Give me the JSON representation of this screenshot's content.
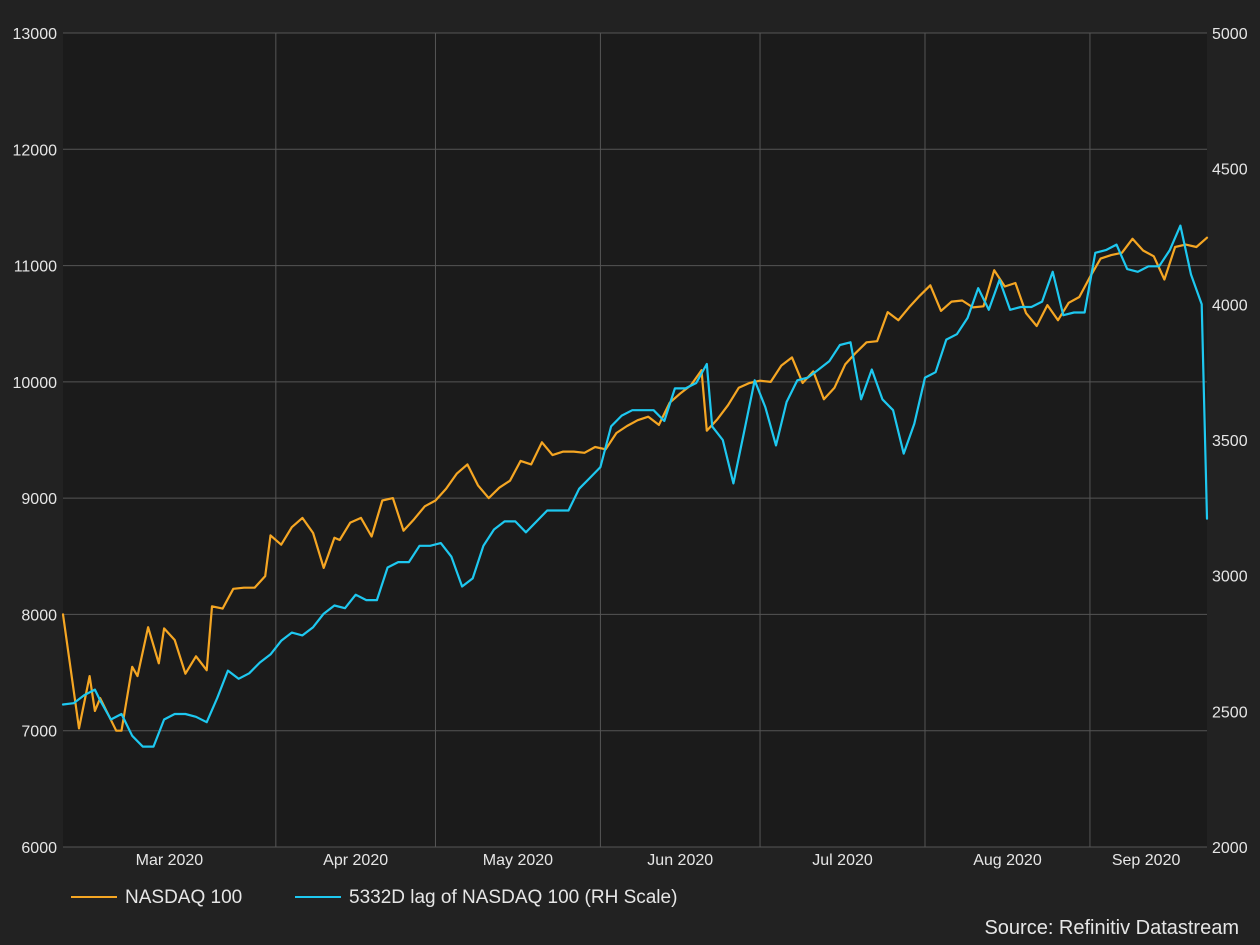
{
  "chart_data": {
    "type": "line",
    "title": "",
    "source": "Source: Refinitiv Datastream",
    "x_axis": {
      "start": "2020-02-21",
      "end": "2020-09-23",
      "month_labels": [
        {
          "label": "Mar 2020",
          "date": "2020-03-01"
        },
        {
          "label": "Apr 2020",
          "date": "2020-04-01"
        },
        {
          "label": "May 2020",
          "date": "2020-05-01"
        },
        {
          "label": "Jun 2020",
          "date": "2020-06-01"
        },
        {
          "label": "Jul 2020",
          "date": "2020-07-01"
        },
        {
          "label": "Aug 2020",
          "date": "2020-08-01"
        },
        {
          "label": "Sep 2020",
          "date": "2020-09-01"
        }
      ]
    },
    "y_left": {
      "min": 6000,
      "max": 13000,
      "ticks": [
        "13000",
        "12000",
        "11000",
        "10000",
        "9000",
        "8000",
        "7000",
        "6000"
      ]
    },
    "y_right": {
      "min": 2000,
      "max": 5000,
      "ticks": [
        "5000",
        "4500",
        "4000",
        "3500",
        "3000",
        "2500",
        "2000"
      ]
    },
    "grid": true,
    "legend_position": "bottom-left",
    "series": [
      {
        "name": "NASDAQ 100",
        "color": "#f5a623",
        "axis": "left",
        "points": [
          [
            "2020-02-21",
            8000
          ],
          [
            "2020-02-24",
            7020
          ],
          [
            "2020-02-26",
            7470
          ],
          [
            "2020-02-27",
            7170
          ],
          [
            "2020-02-28",
            7280
          ],
          [
            "2020-03-02",
            7000
          ],
          [
            "2020-03-03",
            7000
          ],
          [
            "2020-03-05",
            7550
          ],
          [
            "2020-03-06",
            7470
          ],
          [
            "2020-03-08",
            7890
          ],
          [
            "2020-03-10",
            7580
          ],
          [
            "2020-03-11",
            7880
          ],
          [
            "2020-03-13",
            7780
          ],
          [
            "2020-03-15",
            7490
          ],
          [
            "2020-03-17",
            7640
          ],
          [
            "2020-03-19",
            7520
          ],
          [
            "2020-03-20",
            8070
          ],
          [
            "2020-03-22",
            8050
          ],
          [
            "2020-03-24",
            8220
          ],
          [
            "2020-03-26",
            8230
          ],
          [
            "2020-03-28",
            8230
          ],
          [
            "2020-03-30",
            8330
          ],
          [
            "2020-03-31",
            8680
          ],
          [
            "2020-04-02",
            8600
          ],
          [
            "2020-04-04",
            8750
          ],
          [
            "2020-04-06",
            8830
          ],
          [
            "2020-04-08",
            8700
          ],
          [
            "2020-04-10",
            8400
          ],
          [
            "2020-04-12",
            8660
          ],
          [
            "2020-04-13",
            8640
          ],
          [
            "2020-04-15",
            8790
          ],
          [
            "2020-04-17",
            8830
          ],
          [
            "2020-04-19",
            8670
          ],
          [
            "2020-04-21",
            8980
          ],
          [
            "2020-04-23",
            9000
          ],
          [
            "2020-04-25",
            8720
          ],
          [
            "2020-04-27",
            8820
          ],
          [
            "2020-04-29",
            8930
          ],
          [
            "2020-05-01",
            8980
          ],
          [
            "2020-05-03",
            9080
          ],
          [
            "2020-05-05",
            9210
          ],
          [
            "2020-05-07",
            9290
          ],
          [
            "2020-05-09",
            9110
          ],
          [
            "2020-05-11",
            9000
          ],
          [
            "2020-05-13",
            9090
          ],
          [
            "2020-05-15",
            9150
          ],
          [
            "2020-05-17",
            9320
          ],
          [
            "2020-05-19",
            9290
          ],
          [
            "2020-05-21",
            9480
          ],
          [
            "2020-05-23",
            9370
          ],
          [
            "2020-05-25",
            9400
          ],
          [
            "2020-05-27",
            9400
          ],
          [
            "2020-05-29",
            9390
          ],
          [
            "2020-05-31",
            9440
          ],
          [
            "2020-06-02",
            9420
          ],
          [
            "2020-06-04",
            9560
          ],
          [
            "2020-06-06",
            9620
          ],
          [
            "2020-06-08",
            9670
          ],
          [
            "2020-06-10",
            9700
          ],
          [
            "2020-06-12",
            9630
          ],
          [
            "2020-06-14",
            9820
          ],
          [
            "2020-06-16",
            9900
          ],
          [
            "2020-06-18",
            9970
          ],
          [
            "2020-06-20",
            10100
          ],
          [
            "2020-06-21",
            9580
          ],
          [
            "2020-06-23",
            9680
          ],
          [
            "2020-06-25",
            9800
          ],
          [
            "2020-06-27",
            9950
          ],
          [
            "2020-06-29",
            9990
          ],
          [
            "2020-07-01",
            10010
          ],
          [
            "2020-07-03",
            10000
          ],
          [
            "2020-07-05",
            10140
          ],
          [
            "2020-07-07",
            10210
          ],
          [
            "2020-07-09",
            9990
          ],
          [
            "2020-07-11",
            10090
          ],
          [
            "2020-07-13",
            9850
          ],
          [
            "2020-07-15",
            9950
          ],
          [
            "2020-07-17",
            10150
          ],
          [
            "2020-07-19",
            10250
          ],
          [
            "2020-07-21",
            10340
          ],
          [
            "2020-07-23",
            10350
          ],
          [
            "2020-07-25",
            10600
          ],
          [
            "2020-07-27",
            10530
          ],
          [
            "2020-07-29",
            10640
          ],
          [
            "2020-07-31",
            10740
          ],
          [
            "2020-08-02",
            10830
          ],
          [
            "2020-08-04",
            10610
          ],
          [
            "2020-08-06",
            10690
          ],
          [
            "2020-08-08",
            10700
          ],
          [
            "2020-08-10",
            10640
          ],
          [
            "2020-08-12",
            10650
          ],
          [
            "2020-08-14",
            10960
          ],
          [
            "2020-08-16",
            10820
          ],
          [
            "2020-08-18",
            10850
          ],
          [
            "2020-08-20",
            10590
          ],
          [
            "2020-08-22",
            10480
          ],
          [
            "2020-08-24",
            10660
          ],
          [
            "2020-08-26",
            10530
          ],
          [
            "2020-08-28",
            10680
          ],
          [
            "2020-08-30",
            10730
          ],
          [
            "2020-09-01",
            10900
          ],
          [
            "2020-09-03",
            11060
          ],
          [
            "2020-09-05",
            11090
          ],
          [
            "2020-09-07",
            11110
          ],
          [
            "2020-09-09",
            11230
          ],
          [
            "2020-09-11",
            11130
          ],
          [
            "2020-09-13",
            11080
          ],
          [
            "2020-09-15",
            10880
          ],
          [
            "2020-09-17",
            11160
          ],
          [
            "2020-09-19",
            11180
          ],
          [
            "2020-09-21",
            11160
          ],
          [
            "2020-09-23",
            11240
          ]
        ]
      },
      {
        "name": "5332D lag of NASDAQ 100 (RH Scale)",
        "color": "#1ec8f0",
        "axis": "right",
        "points": [
          [
            "2020-02-21",
            2525
          ],
          [
            "2020-02-23",
            2530
          ],
          [
            "2020-02-25",
            2560
          ],
          [
            "2020-02-27",
            2580
          ],
          [
            "2020-02-28",
            2540
          ],
          [
            "2020-03-01",
            2470
          ],
          [
            "2020-03-03",
            2490
          ],
          [
            "2020-03-05",
            2410
          ],
          [
            "2020-03-07",
            2370
          ],
          [
            "2020-03-09",
            2370
          ],
          [
            "2020-03-11",
            2470
          ],
          [
            "2020-03-13",
            2490
          ],
          [
            "2020-03-15",
            2490
          ],
          [
            "2020-03-17",
            2480
          ],
          [
            "2020-03-19",
            2460
          ],
          [
            "2020-03-21",
            2550
          ],
          [
            "2020-03-23",
            2650
          ],
          [
            "2020-03-25",
            2620
          ],
          [
            "2020-03-27",
            2640
          ],
          [
            "2020-03-29",
            2680
          ],
          [
            "2020-03-31",
            2710
          ],
          [
            "2020-04-02",
            2760
          ],
          [
            "2020-04-04",
            2790
          ],
          [
            "2020-04-06",
            2780
          ],
          [
            "2020-04-08",
            2810
          ],
          [
            "2020-04-10",
            2860
          ],
          [
            "2020-04-12",
            2890
          ],
          [
            "2020-04-14",
            2880
          ],
          [
            "2020-04-16",
            2930
          ],
          [
            "2020-04-18",
            2910
          ],
          [
            "2020-04-20",
            2910
          ],
          [
            "2020-04-22",
            3030
          ],
          [
            "2020-04-24",
            3050
          ],
          [
            "2020-04-26",
            3050
          ],
          [
            "2020-04-28",
            3110
          ],
          [
            "2020-04-30",
            3110
          ],
          [
            "2020-05-02",
            3120
          ],
          [
            "2020-05-04",
            3070
          ],
          [
            "2020-05-06",
            2960
          ],
          [
            "2020-05-08",
            2990
          ],
          [
            "2020-05-10",
            3110
          ],
          [
            "2020-05-12",
            3170
          ],
          [
            "2020-05-14",
            3200
          ],
          [
            "2020-05-16",
            3200
          ],
          [
            "2020-05-18",
            3160
          ],
          [
            "2020-05-20",
            3200
          ],
          [
            "2020-05-22",
            3240
          ],
          [
            "2020-05-24",
            3240
          ],
          [
            "2020-05-26",
            3240
          ],
          [
            "2020-05-28",
            3320
          ],
          [
            "2020-05-30",
            3360
          ],
          [
            "2020-06-01",
            3400
          ],
          [
            "2020-06-03",
            3550
          ],
          [
            "2020-06-05",
            3590
          ],
          [
            "2020-06-07",
            3610
          ],
          [
            "2020-06-09",
            3610
          ],
          [
            "2020-06-11",
            3610
          ],
          [
            "2020-06-13",
            3570
          ],
          [
            "2020-06-15",
            3690
          ],
          [
            "2020-06-17",
            3690
          ],
          [
            "2020-06-19",
            3710
          ],
          [
            "2020-06-21",
            3780
          ],
          [
            "2020-06-22",
            3550
          ],
          [
            "2020-06-24",
            3500
          ],
          [
            "2020-06-26",
            3340
          ],
          [
            "2020-06-28",
            3530
          ],
          [
            "2020-06-30",
            3720
          ],
          [
            "2020-07-02",
            3620
          ],
          [
            "2020-07-04",
            3480
          ],
          [
            "2020-07-06",
            3640
          ],
          [
            "2020-07-08",
            3720
          ],
          [
            "2020-07-10",
            3730
          ],
          [
            "2020-07-12",
            3760
          ],
          [
            "2020-07-14",
            3790
          ],
          [
            "2020-07-16",
            3850
          ],
          [
            "2020-07-18",
            3860
          ],
          [
            "2020-07-20",
            3650
          ],
          [
            "2020-07-22",
            3760
          ],
          [
            "2020-07-24",
            3650
          ],
          [
            "2020-07-26",
            3610
          ],
          [
            "2020-07-28",
            3450
          ],
          [
            "2020-07-30",
            3560
          ],
          [
            "2020-08-01",
            3730
          ],
          [
            "2020-08-03",
            3750
          ],
          [
            "2020-08-05",
            3870
          ],
          [
            "2020-08-07",
            3890
          ],
          [
            "2020-08-09",
            3950
          ],
          [
            "2020-08-11",
            4060
          ],
          [
            "2020-08-13",
            3980
          ],
          [
            "2020-08-15",
            4090
          ],
          [
            "2020-08-17",
            3980
          ],
          [
            "2020-08-19",
            3990
          ],
          [
            "2020-08-21",
            3990
          ],
          [
            "2020-08-23",
            4010
          ],
          [
            "2020-08-25",
            4120
          ],
          [
            "2020-08-27",
            3960
          ],
          [
            "2020-08-29",
            3970
          ],
          [
            "2020-08-31",
            3970
          ],
          [
            "2020-09-02",
            4190
          ],
          [
            "2020-09-04",
            4200
          ],
          [
            "2020-09-06",
            4220
          ],
          [
            "2020-09-08",
            4130
          ],
          [
            "2020-09-10",
            4120
          ],
          [
            "2020-09-12",
            4140
          ],
          [
            "2020-09-14",
            4140
          ],
          [
            "2020-09-16",
            4200
          ],
          [
            "2020-09-18",
            4290
          ],
          [
            "2020-09-20",
            4110
          ],
          [
            "2020-09-22",
            4000
          ],
          [
            "2020-09-23",
            3210
          ]
        ]
      }
    ]
  }
}
